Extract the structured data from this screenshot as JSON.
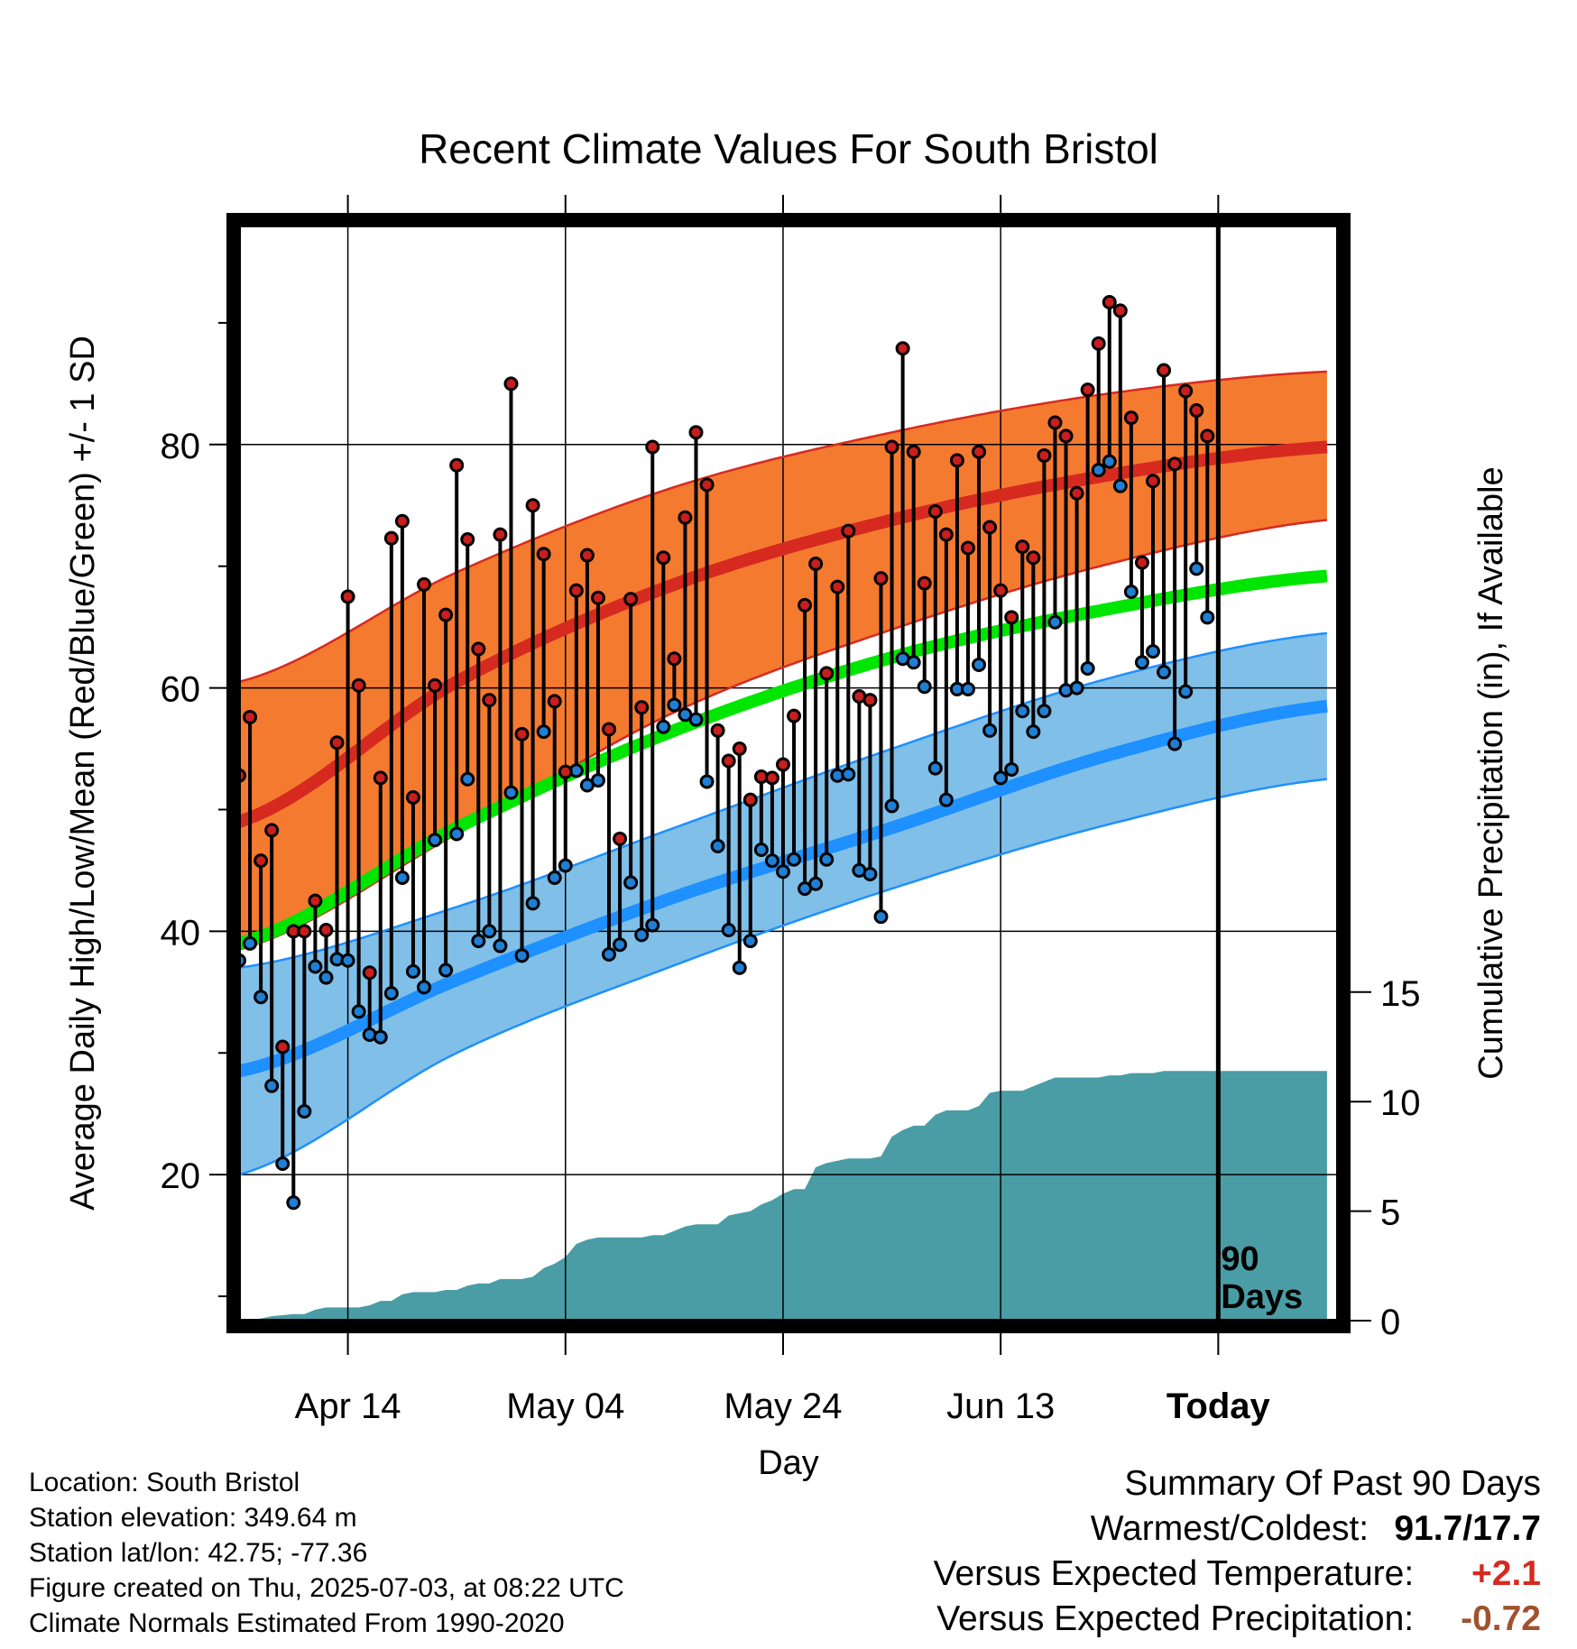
{
  "chart_data": {
    "type": "line",
    "title": "Recent Climate Values For South Bristol",
    "xlabel": "Day",
    "ylabel": "Average Daily High/Low/Mean (Red/Blue/Green) +/- 1 SD",
    "y2label": "Cumulative Precipitation (in), If Available",
    "xlim": [
      -10,
      91
    ],
    "ylim": [
      8,
      98
    ],
    "y2lim": [
      0,
      50
    ],
    "x_ticks": [
      {
        "x": 0,
        "label": "Apr 14"
      },
      {
        "x": 20,
        "label": "May 04"
      },
      {
        "x": 40,
        "label": "May 24"
      },
      {
        "x": 60,
        "label": "Jun 13"
      },
      {
        "x": 80,
        "label": "Today"
      }
    ],
    "y_ticks": [
      20,
      40,
      60,
      80
    ],
    "y2_ticks": [
      0,
      5,
      10,
      15
    ],
    "today_x": 80,
    "today_label_lines": [
      "90",
      "Days"
    ],
    "grid": true,
    "colors": {
      "high_band": "#f47a30",
      "high_line": "#d62a20",
      "low_band": "#80bfe8",
      "low_line": "#1e90ff",
      "mean_line": "#00e600",
      "precip": "#4a9ca5",
      "high_point": "#c81e1e",
      "low_point": "#1f7fd4"
    },
    "normals": {
      "x": [
        -10,
        10,
        30,
        50,
        70,
        90
      ],
      "high_upper": [
        60.5,
        69.5,
        76.5,
        81.0,
        84.2,
        86.0
      ],
      "high_mean": [
        49.0,
        60.5,
        68.5,
        73.8,
        77.5,
        79.8
      ],
      "high_lower": [
        38.5,
        48.0,
        58.0,
        64.8,
        70.2,
        73.8
      ],
      "mean": [
        39.0,
        48.5,
        56.5,
        62.5,
        66.5,
        69.2
      ],
      "low_upper": [
        37.0,
        42.0,
        48.5,
        55.0,
        60.8,
        64.5
      ],
      "low_mean": [
        28.5,
        36.0,
        42.8,
        48.5,
        54.5,
        58.5
      ],
      "low_lower": [
        20.0,
        30.0,
        37.2,
        43.5,
        48.8,
        52.5
      ]
    },
    "series": [
      {
        "name": "High",
        "x": [
          -10,
          -9,
          -8,
          -7,
          -6,
          -5,
          -4,
          -3,
          -2,
          -1,
          0,
          1,
          2,
          3,
          4,
          5,
          6,
          7,
          8,
          9,
          10,
          11,
          12,
          13,
          14,
          15,
          16,
          17,
          18,
          19,
          20,
          21,
          22,
          23,
          24,
          25,
          26,
          27,
          28,
          29,
          30,
          31,
          32,
          33,
          34,
          35,
          36,
          37,
          38,
          39,
          40,
          41,
          42,
          43,
          44,
          45,
          46,
          47,
          48,
          49,
          50,
          51,
          52,
          53,
          54,
          55,
          56,
          57,
          58,
          59,
          60,
          61,
          62,
          63,
          64,
          65,
          66,
          67,
          68,
          69,
          70,
          71,
          72,
          73,
          74,
          75,
          76,
          77,
          78,
          79
        ],
        "values": [
          52.8,
          57.6,
          45.8,
          48.3,
          30.5,
          40.0,
          40.0,
          42.5,
          40.1,
          55.5,
          67.5,
          60.2,
          36.6,
          52.6,
          72.3,
          73.7,
          51.0,
          68.5,
          60.2,
          66.0,
          78.3,
          72.2,
          63.2,
          59.0,
          72.6,
          85.0,
          56.2,
          75.0,
          71.0,
          58.9,
          53.1,
          68.0,
          70.9,
          67.4,
          56.6,
          47.6,
          67.3,
          58.4,
          79.8,
          70.7,
          62.4,
          74.0,
          81.0,
          76.7,
          56.5,
          54.0,
          55.0,
          50.8,
          52.7,
          52.6,
          53.7,
          57.7,
          66.8,
          70.2,
          61.2,
          68.3,
          72.9,
          59.3,
          59.0,
          69.0,
          79.8,
          87.9,
          79.4,
          68.6,
          74.5,
          72.6,
          78.7,
          71.5,
          79.4,
          73.2,
          68.0,
          65.8,
          71.6,
          70.7,
          79.1,
          81.8,
          80.7,
          76.0,
          84.5,
          88.3,
          91.7,
          91.0,
          82.2,
          70.3,
          77.0,
          86.1,
          78.4,
          84.4,
          82.8,
          80.7
        ]
      },
      {
        "name": "Low",
        "x": [
          -10,
          -9,
          -8,
          -7,
          -6,
          -5,
          -4,
          -3,
          -2,
          -1,
          0,
          1,
          2,
          3,
          4,
          5,
          6,
          7,
          8,
          9,
          10,
          11,
          12,
          13,
          14,
          15,
          16,
          17,
          18,
          19,
          20,
          21,
          22,
          23,
          24,
          25,
          26,
          27,
          28,
          29,
          30,
          31,
          32,
          33,
          34,
          35,
          36,
          37,
          38,
          39,
          40,
          41,
          42,
          43,
          44,
          45,
          46,
          47,
          48,
          49,
          50,
          51,
          52,
          53,
          54,
          55,
          56,
          57,
          58,
          59,
          60,
          61,
          62,
          63,
          64,
          65,
          66,
          67,
          68,
          69,
          70,
          71,
          72,
          73,
          74,
          75,
          76,
          77,
          78,
          79
        ],
        "values": [
          37.6,
          39.0,
          34.6,
          27.3,
          20.9,
          17.7,
          25.2,
          37.1,
          36.2,
          37.7,
          37.6,
          33.4,
          31.5,
          31.3,
          34.9,
          44.4,
          36.7,
          35.4,
          47.5,
          36.8,
          48.0,
          52.5,
          39.2,
          40.0,
          38.8,
          51.4,
          38.0,
          42.3,
          56.4,
          44.4,
          45.4,
          53.2,
          52.0,
          52.4,
          38.1,
          38.9,
          44.0,
          39.7,
          40.5,
          56.8,
          58.6,
          57.8,
          57.4,
          52.3,
          47.0,
          40.1,
          37.0,
          39.2,
          46.7,
          45.8,
          44.9,
          45.9,
          43.5,
          43.9,
          45.9,
          52.8,
          52.9,
          45.0,
          44.7,
          41.2,
          50.3,
          62.4,
          62.1,
          60.1,
          53.4,
          50.8,
          59.9,
          59.9,
          61.9,
          56.5,
          52.6,
          53.3,
          58.1,
          56.4,
          58.1,
          65.4,
          59.8,
          60.0,
          61.6,
          77.9,
          78.6,
          76.6,
          67.9,
          62.1,
          63.0,
          61.3,
          55.4,
          59.7,
          69.8,
          65.8
        ]
      }
    ],
    "precipitation": {
      "x": [
        -9,
        -7,
        -5,
        -4,
        -3,
        -2,
        0,
        1,
        2,
        3,
        4,
        5,
        6,
        7,
        8,
        9,
        10,
        11,
        12,
        13,
        14,
        15,
        16,
        17,
        18,
        19,
        20,
        21,
        22,
        23,
        24,
        25,
        26,
        27,
        28,
        29,
        30,
        31,
        32,
        33,
        34,
        35,
        36,
        37,
        38,
        39,
        40,
        41,
        42,
        43,
        44,
        45,
        46,
        47,
        48,
        49,
        50,
        51,
        52,
        53,
        54,
        55,
        56,
        57,
        58,
        59,
        60,
        61,
        62,
        63,
        64,
        65,
        66,
        67,
        68,
        69,
        70,
        71,
        72,
        73,
        74,
        75,
        76,
        77,
        78,
        79,
        80,
        81,
        82,
        83,
        84,
        85,
        86,
        87,
        88,
        89,
        90
      ],
      "values": [
        0.0,
        0.2,
        0.3,
        0.3,
        0.5,
        0.6,
        0.6,
        0.6,
        0.7,
        0.9,
        0.9,
        1.2,
        1.3,
        1.3,
        1.3,
        1.4,
        1.4,
        1.6,
        1.7,
        1.7,
        1.9,
        1.9,
        1.9,
        2.0,
        2.4,
        2.6,
        2.9,
        3.5,
        3.7,
        3.8,
        3.8,
        3.8,
        3.8,
        3.8,
        3.9,
        3.9,
        4.1,
        4.3,
        4.4,
        4.4,
        4.4,
        4.8,
        4.9,
        5.0,
        5.3,
        5.5,
        5.8,
        6.0,
        6.0,
        7.0,
        7.2,
        7.3,
        7.4,
        7.4,
        7.4,
        7.5,
        8.4,
        8.7,
        8.9,
        8.9,
        9.4,
        9.6,
        9.6,
        9.6,
        9.8,
        10.4,
        10.5,
        10.5,
        10.5,
        10.7,
        10.9,
        11.1,
        11.1,
        11.1,
        11.1,
        11.1,
        11.2,
        11.2,
        11.3,
        11.3,
        11.3,
        11.4,
        11.4,
        11.4,
        11.4,
        11.4,
        11.4,
        11.4,
        11.4,
        11.4,
        11.4,
        11.4,
        11.4,
        11.4,
        11.4,
        11.4,
        11.4
      ]
    }
  },
  "station": {
    "location": "Location: South Bristol",
    "elevation": "Station elevation: 349.64 m",
    "latlon": "Station lat/lon: 42.75; -77.36",
    "created": "Figure created on Thu, 2025-07-03, at 08:22 UTC",
    "normals_source": "Climate Normals Estimated From 1990-2020"
  },
  "summary": {
    "heading": "Summary Of Past 90 Days",
    "warm_cold_label": "Warmest/Coldest:",
    "warm_cold_value": "91.7/17.7",
    "temp_label": "Versus Expected Temperature:",
    "temp_value": "+2.1",
    "temp_color": "#d62a20",
    "precip_label": "Versus Expected Precipitation:",
    "precip_value": "-0.72",
    "precip_color": "#a0522d"
  }
}
